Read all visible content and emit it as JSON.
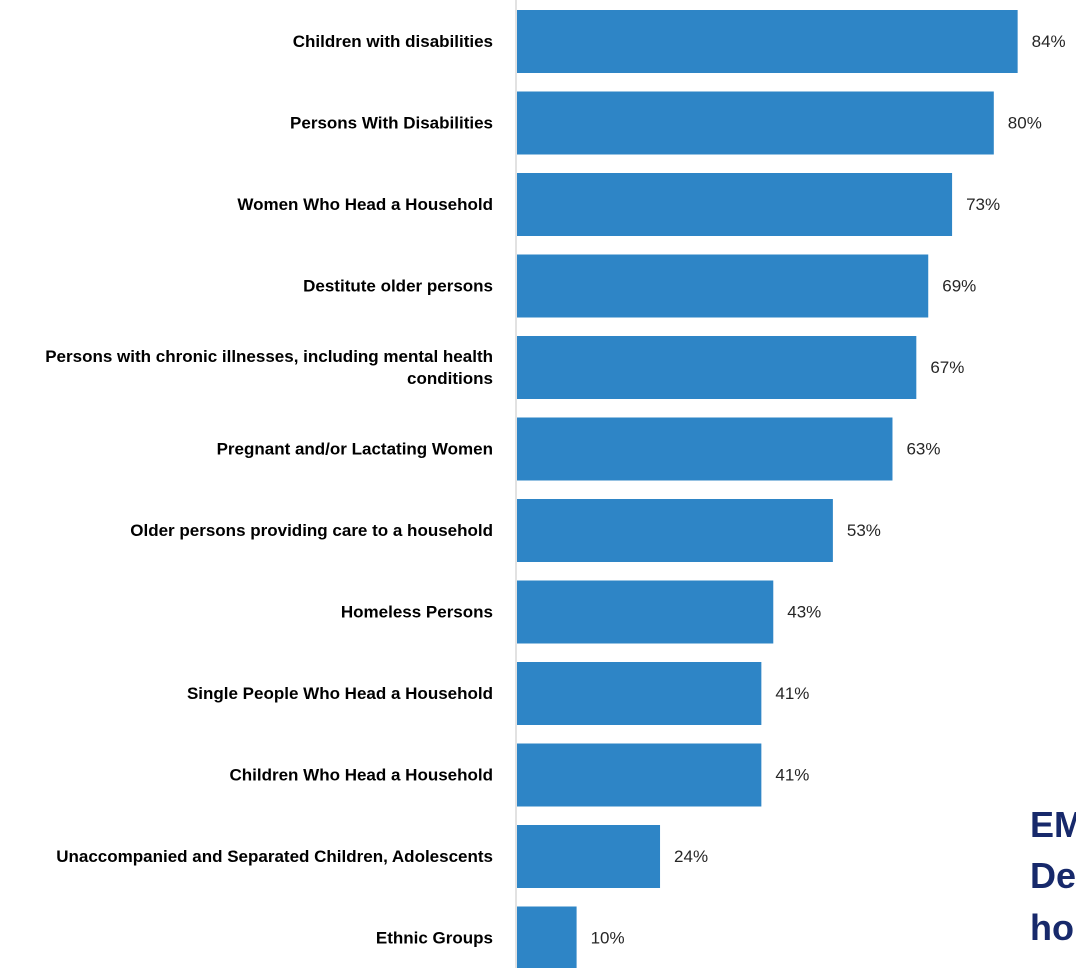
{
  "chart_data": {
    "type": "bar",
    "orientation": "horizontal",
    "categories": [
      "Children  with disabilities",
      "Persons With Disabilities",
      "Women Who Head a Household",
      "Destitute older persons",
      "Persons with chronic illnesses, including mental health conditions",
      "Pregnant and/or Lactating Women",
      "Older persons providing care to a household",
      "Homeless Persons",
      "Single People Who Head a Household",
      "Children Who Head a Household",
      "Unaccompanied and Separated Children, Adolescents",
      "Ethnic Groups"
    ],
    "values": [
      84,
      80,
      73,
      69,
      67,
      63,
      53,
      43,
      41,
      41,
      24,
      10
    ],
    "value_labels": [
      "84%",
      "80%",
      "73%",
      "69%",
      "67%",
      "63%",
      "53%",
      "43%",
      "41%",
      "41%",
      "24%",
      "10%"
    ],
    "xlim": [
      0,
      100
    ],
    "bar_color": "#2e85c6",
    "axis_color": "#d9d9d9",
    "grid": false,
    "legend": "none"
  },
  "overlay_text": [
    "EM",
    "De",
    "ho"
  ],
  "overlay_color": "#17296b"
}
